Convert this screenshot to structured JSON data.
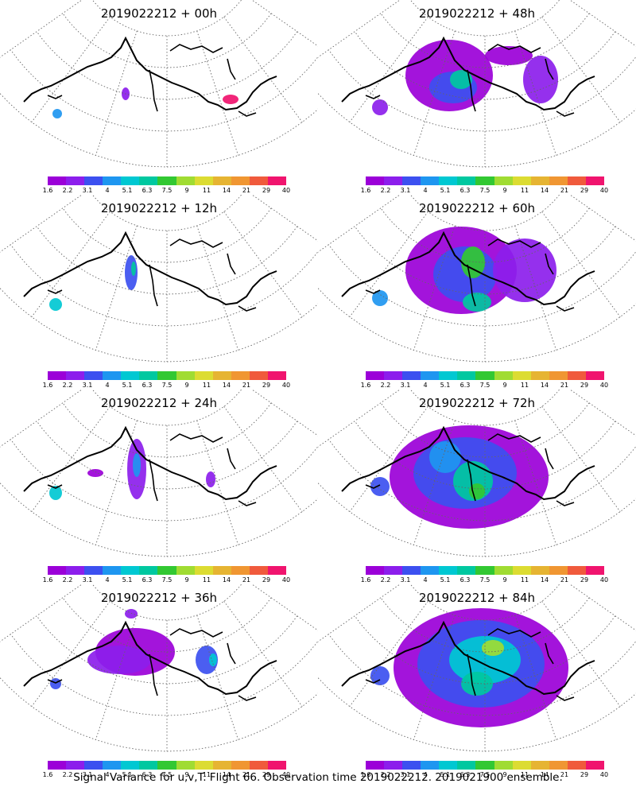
{
  "panels": [
    {
      "title": "2019022212 + 00h",
      "stage": 0
    },
    {
      "title": "2019022212 + 48h",
      "stage": 4
    },
    {
      "title": "2019022212 + 12h",
      "stage": 1
    },
    {
      "title": "2019022212 + 60h",
      "stage": 5
    },
    {
      "title": "2019022212 + 24h",
      "stage": 2
    },
    {
      "title": "2019022212 + 72h",
      "stage": 6
    },
    {
      "title": "2019022212 + 36h",
      "stage": 3
    },
    {
      "title": "2019022212 + 84h",
      "stage": 7
    }
  ],
  "colorbar": {
    "labels": [
      "1.6",
      "2.2",
      "3.1",
      "4",
      "5.1",
      "6.3",
      "7.5",
      "9",
      "11",
      "14",
      "21",
      "29",
      "40"
    ],
    "colors": [
      "#9b00d8",
      "#8c1eec",
      "#3c50f0",
      "#1e96f0",
      "#00c8d2",
      "#00c8a0",
      "#32c832",
      "#a0dc32",
      "#dcdc32",
      "#e6b432",
      "#f09632",
      "#f05a3c",
      "#f0146e"
    ]
  },
  "caption": "Signal Variance for u,v,T. Flight 66. Observation time 2019022212. 2019021900 ensemble."
}
